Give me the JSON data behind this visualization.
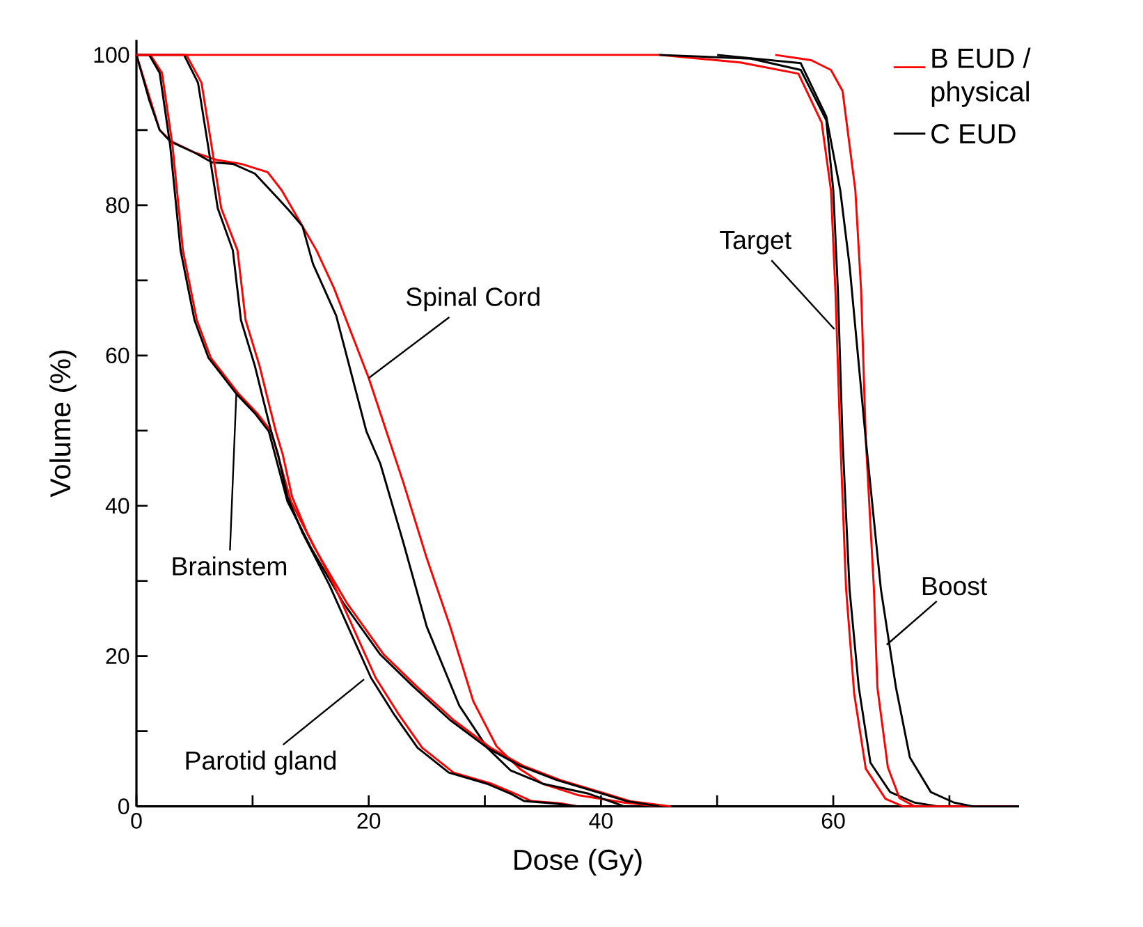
{
  "chart_data": {
    "type": "line",
    "xlabel": "Dose (Gy)",
    "ylabel": "Volume (%)",
    "xlim": [
      0,
      76
    ],
    "ylim": [
      0,
      102
    ],
    "xticks": [
      0,
      {
        "value": 10,
        "label": null
      },
      20,
      {
        "value": 30,
        "label": null
      },
      40,
      {
        "value": 50,
        "label": null
      },
      60,
      {
        "value": 70,
        "label": null
      }
    ],
    "yticks": [
      0,
      {
        "value": 10,
        "label": null
      },
      20,
      {
        "value": 30,
        "label": null
      },
      40,
      {
        "value": 50,
        "label": null
      },
      60,
      {
        "value": 70,
        "label": null
      },
      80,
      {
        "value": 90,
        "label": null
      },
      100
    ],
    "legend": "top right",
    "series": [
      {
        "name": "B EUD / physical",
        "color": "#ff0000",
        "x": [
          0,
          1,
          2,
          3,
          5,
          7,
          9,
          11.3,
          12.5,
          14,
          15.5,
          17,
          18.5,
          20,
          21.5,
          23,
          25,
          27,
          29,
          31,
          33,
          35,
          38,
          42,
          45
        ],
        "values": [
          100,
          95,
          90,
          88.5,
          87,
          86,
          85.5,
          84.4,
          82,
          78,
          74,
          69,
          63,
          57,
          50,
          43,
          33,
          24,
          14,
          8,
          5,
          3,
          1.5,
          0.5,
          0
        ]
      },
      {
        "name": "C EUD",
        "color": "#000000",
        "x": [
          0,
          1.1,
          2,
          2.9,
          5,
          6.5,
          8.3,
          10.2,
          12.2,
          13.2,
          14.3,
          15.2,
          17.2,
          19.8,
          21,
          23,
          25,
          27.8,
          30.2,
          32.2,
          35,
          38.9,
          42
        ],
        "values": [
          100,
          94,
          90,
          88.5,
          87,
          85.7,
          85.5,
          84.2,
          80.9,
          79.2,
          77.2,
          72.2,
          65.3,
          49.9,
          45.6,
          35,
          23.9,
          13.4,
          7.8,
          4.8,
          3,
          1.7,
          0
        ]
      },
      {
        "color": "#ff0000",
        "x": [
          0,
          1.2,
          2.2,
          3.1,
          4,
          5.2,
          6.4,
          7.6,
          8.8,
          10.4,
          11.6,
          13.3,
          15.3,
          18.1,
          21.3,
          24.1,
          27.3,
          30.5,
          33.3,
          36.5,
          40.4,
          42.5,
          46
        ],
        "values": [
          100,
          100,
          97.6,
          88,
          74,
          64.7,
          59.7,
          57.3,
          54.9,
          52.3,
          49.9,
          40.6,
          34.5,
          27.1,
          20.2,
          16,
          11.5,
          7.8,
          5.4,
          3.5,
          1.7,
          0.7,
          0
        ]
      },
      {
        "color": "#000000",
        "x": [
          0,
          1.1,
          2,
          2.9,
          3.8,
          5,
          6.2,
          7.4,
          8.6,
          10.2,
          11.4,
          13,
          15,
          17.8,
          21,
          23.8,
          27,
          30.2,
          33,
          36.2,
          40.1,
          42.2,
          45
        ],
        "values": [
          100,
          100,
          97.6,
          88,
          74,
          64.7,
          59.7,
          57.3,
          54.9,
          52.3,
          49.9,
          40.6,
          34.5,
          27.1,
          20.2,
          16,
          11.5,
          7.8,
          5.4,
          3.5,
          1.7,
          0.7,
          0
        ]
      },
      {
        "color": "#ff0000",
        "x": [
          0,
          4.3,
          5.6,
          6.5,
          7.3,
          8.7,
          9.4,
          10.6,
          11.4,
          12,
          12.6,
          13.4,
          14.7,
          17,
          19,
          20.6,
          22.6,
          24.6,
          27.3,
          30.6,
          32.6,
          34,
          36.5,
          38
        ],
        "values": [
          100,
          100,
          96.3,
          87.6,
          79.6,
          74,
          64.7,
          58.6,
          53.6,
          49.9,
          46.8,
          41.2,
          36.4,
          29.5,
          22.6,
          17.1,
          12.2,
          7.8,
          4.5,
          3,
          1.7,
          0.7,
          0.4,
          0
        ]
      },
      {
        "color": "#000000",
        "x": [
          0,
          4.1,
          5.3,
          6.2,
          7,
          8.3,
          9,
          10.2,
          11,
          11.6,
          12.2,
          13,
          14.3,
          16.6,
          18.6,
          20.2,
          22.2,
          24.2,
          26.9,
          30.2,
          32.2,
          33.4,
          35.8,
          38
        ],
        "values": [
          100,
          100,
          96.3,
          87.6,
          79.6,
          74,
          64.7,
          58.6,
          53.6,
          49.9,
          46.8,
          41.2,
          36.4,
          29.5,
          22.6,
          17.1,
          12.2,
          7.8,
          4.5,
          3,
          1.7,
          0.7,
          0.4,
          0
        ]
      },
      {
        "color": "#ff0000",
        "x": [
          0,
          45,
          52,
          57,
          59,
          59.8,
          60.2,
          60.6,
          61.1,
          61.8,
          62.8,
          64.5,
          66,
          76
        ],
        "values": [
          100,
          100,
          99,
          97.5,
          91,
          82,
          68,
          49,
          29,
          15,
          5,
          1,
          0,
          0
        ]
      },
      {
        "color": "#000000",
        "x": [
          45,
          52.9,
          57.2,
          59.4,
          60,
          60.4,
          60.8,
          61.4,
          62.2,
          63.2,
          64.9,
          67,
          69,
          76
        ],
        "values": [
          100,
          99.5,
          98,
          91.3,
          82,
          68.6,
          48.8,
          28.9,
          15.8,
          5.8,
          1.9,
          0.5,
          0,
          0
        ]
      },
      {
        "color": "#ff0000",
        "x": [
          55,
          58.1,
          59.8,
          60.8,
          61.9,
          62.4,
          62.8,
          63.5,
          63.8,
          64.7,
          65.7,
          67,
          76
        ],
        "values": [
          100,
          99.3,
          98,
          95.2,
          82,
          68.6,
          48.8,
          28.9,
          15.8,
          5.2,
          1.1,
          0,
          0
        ]
      },
      {
        "color": "#000000",
        "x": [
          50,
          57.2,
          59.4,
          60.6,
          61.4,
          62.8,
          64.1,
          65.4,
          66.6,
          68.4,
          70.4,
          72,
          76
        ],
        "values": [
          100,
          98.9,
          91.8,
          82,
          72,
          48.8,
          28.9,
          15.8,
          6.5,
          1.9,
          0.5,
          0,
          0
        ]
      }
    ],
    "annotations": [
      {
        "text": "Spinal Cord",
        "x": 20,
        "y": 57
      },
      {
        "text": "Brainstem",
        "x": 8.6,
        "y": 54.9
      },
      {
        "text": "Parotid gland",
        "x": 19.6,
        "y": 16.9
      },
      {
        "text": "Target",
        "x": 60.1,
        "y": 63.5
      },
      {
        "text": "Boost",
        "x": 64.6,
        "y": 21.5
      }
    ]
  }
}
